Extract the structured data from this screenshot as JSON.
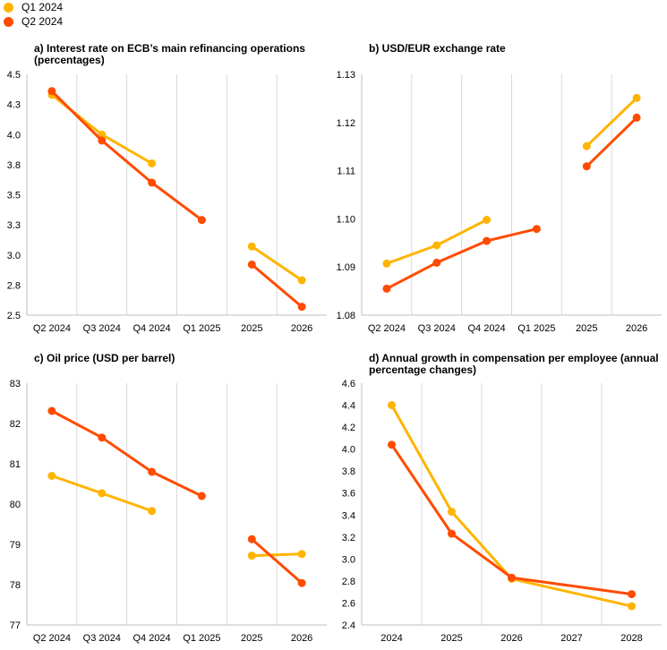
{
  "legend": {
    "items": [
      {
        "label": "Q1 2024",
        "color": "#FFB400"
      },
      {
        "label": "Q2 2024",
        "color": "#FF4B00"
      }
    ]
  },
  "chart_data": [
    {
      "id": "a",
      "type": "line",
      "title": "a) Interest rate on ECB’s main refinancing operations (percentages)",
      "categories": [
        "Q2 2024",
        "Q3 2024",
        "Q4 2024",
        "Q1 2025",
        "2025",
        "2026"
      ],
      "yticks": [
        "4.5",
        "4.3",
        "4.0",
        "3.8",
        "3.5",
        "3.3",
        "3.0",
        "2.8",
        "2.5"
      ],
      "ylim": [
        2.5,
        4.5
      ],
      "segments": [
        [
          0,
          3
        ],
        [
          4,
          5
        ]
      ],
      "series": [
        {
          "name": "Q1 2024",
          "color": "#FFB400",
          "values": [
            4.33,
            4.0,
            3.76,
            null,
            3.07,
            2.79
          ]
        },
        {
          "name": "Q2 2024",
          "color": "#FF4B00",
          "values": [
            4.36,
            3.95,
            3.6,
            3.29,
            2.92,
            2.57
          ]
        }
      ],
      "grid": "vertical"
    },
    {
      "id": "b",
      "type": "line",
      "title": "b) USD/EUR exchange rate",
      "categories": [
        "Q2 2024",
        "Q3 2024",
        "Q4 2024",
        "Q1 2025",
        "2025",
        "2026"
      ],
      "yticks": [
        "1.13",
        "1.12",
        "1.11",
        "1.10",
        "1.09",
        "1.08"
      ],
      "ylim": [
        1.08,
        1.13
      ],
      "segments": [
        [
          0,
          3
        ],
        [
          4,
          5
        ]
      ],
      "series": [
        {
          "name": "Q1 2024",
          "color": "#FFB400",
          "values": [
            1.0907,
            1.0945,
            1.0998,
            null,
            1.1151,
            1.1251
          ]
        },
        {
          "name": "Q2 2024",
          "color": "#FF4B00",
          "values": [
            1.0855,
            1.0909,
            1.0954,
            1.0979,
            1.1109,
            1.121
          ]
        }
      ],
      "grid": "vertical"
    },
    {
      "id": "c",
      "type": "line",
      "title": "c) Oil price (USD per barrel)",
      "categories": [
        "Q2 2024",
        "Q3 2024",
        "Q4 2024",
        "Q1 2025",
        "2025",
        "2026"
      ],
      "yticks": [
        "83",
        "82",
        "81",
        "80",
        "79",
        "78",
        "77"
      ],
      "ylim": [
        77,
        83
      ],
      "segments": [
        [
          0,
          3
        ],
        [
          4,
          5
        ]
      ],
      "series": [
        {
          "name": "Q1 2024",
          "color": "#FFB400",
          "values": [
            80.7,
            80.27,
            79.83,
            null,
            78.72,
            78.76
          ]
        },
        {
          "name": "Q2 2024",
          "color": "#FF4B00",
          "values": [
            82.31,
            81.65,
            80.8,
            80.2,
            79.13,
            78.04
          ]
        }
      ],
      "grid": "vertical"
    },
    {
      "id": "d",
      "type": "line",
      "title": "d) Annual growth in compensation per employee (annual percentage changes)",
      "categories": [
        "2024",
        "2025",
        "2026",
        "2027",
        "2028"
      ],
      "yticks": [
        "4.6",
        "4.4",
        "4.2",
        "4.0",
        "3.8",
        "3.6",
        "3.4",
        "3.2",
        "3.0",
        "2.8",
        "2.6",
        "2.4"
      ],
      "ylim": [
        2.4,
        4.6
      ],
      "segments": [
        [
          0,
          4
        ]
      ],
      "series": [
        {
          "name": "Q1 2024",
          "color": "#FFB400",
          "values": [
            4.4,
            3.43,
            2.82,
            null,
            2.57
          ]
        },
        {
          "name": "Q2 2024",
          "color": "#FF4B00",
          "values": [
            4.04,
            3.23,
            2.83,
            null,
            2.68
          ]
        }
      ],
      "grid": "vertical"
    }
  ]
}
